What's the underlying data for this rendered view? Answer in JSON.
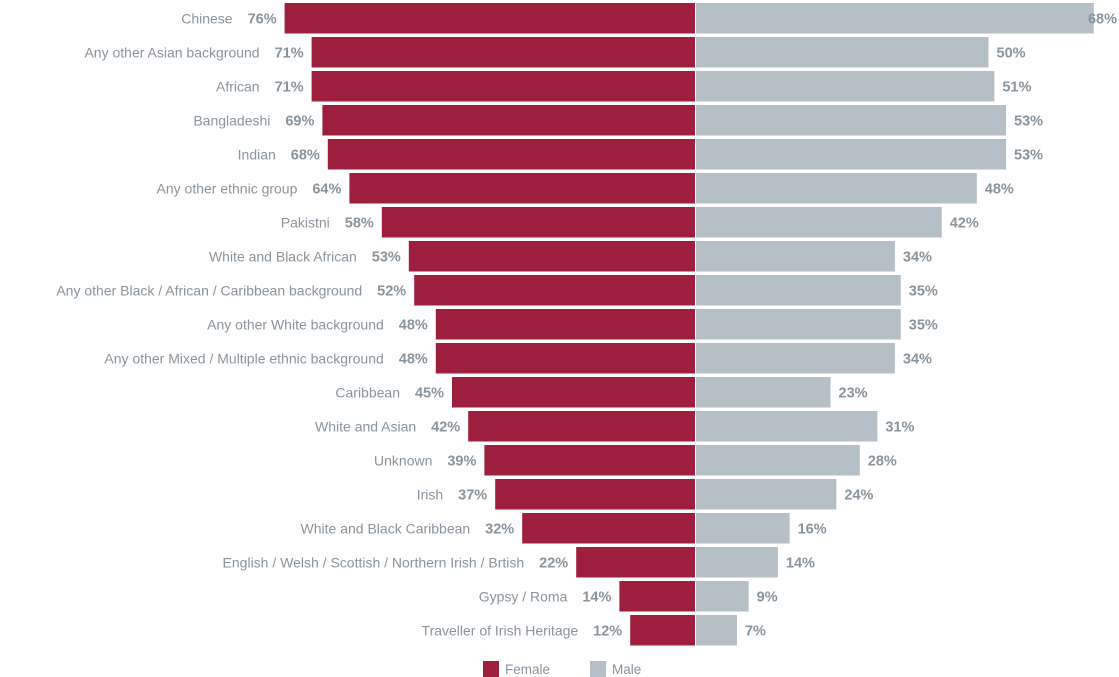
{
  "chart_data": {
    "type": "bar",
    "orientation": "horizontal-diverging",
    "categories": [
      "Chinese",
      "Any other Asian background",
      "African",
      "Bangladeshi",
      "Indian",
      "Any other ethnic group",
      "Pakistni",
      "White and Black African",
      "Any other Black / African / Caribbean background",
      "Any other White background",
      "Any other Mixed / Multiple ethnic background",
      "Caribbean",
      "White and Asian",
      "Unknown",
      "Irish",
      "White and Black Caribbean",
      "English / Welsh / Scottish / Northern Irish / Brtish",
      "Gypsy / Roma",
      "Traveller of Irish Heritage"
    ],
    "series": [
      {
        "name": "Female",
        "color": "#9e1f3d",
        "values": [
          76,
          71,
          71,
          69,
          68,
          64,
          58,
          53,
          52,
          48,
          48,
          45,
          42,
          39,
          37,
          32,
          22,
          14,
          12
        ],
        "labels": [
          "76%",
          "71%",
          "71%",
          "69%",
          "68%",
          "64%",
          "58%",
          "53%",
          "52%",
          "48%",
          "48%",
          "45%",
          "42%",
          "39%",
          "37%",
          "32%",
          "22%",
          "14%",
          "12%"
        ]
      },
      {
        "name": "Male",
        "color": "#b4bfc6",
        "values": [
          68,
          50,
          51,
          53,
          53,
          48,
          42,
          34,
          35,
          35,
          34,
          23,
          31,
          28,
          24,
          16,
          14,
          9,
          7
        ],
        "labels": [
          "68%",
          "50%",
          "51%",
          "53%",
          "53%",
          "48%",
          "42%",
          "34%",
          "35%",
          "35%",
          "34%",
          "23%",
          "31%",
          "28%",
          "24%",
          "16%",
          "14%",
          "9%",
          "7%"
        ]
      }
    ],
    "unit": "%",
    "legend": "bottom-center",
    "grid": false
  },
  "colors": {
    "label_text": "#8a949c",
    "background": "#ffffff"
  }
}
